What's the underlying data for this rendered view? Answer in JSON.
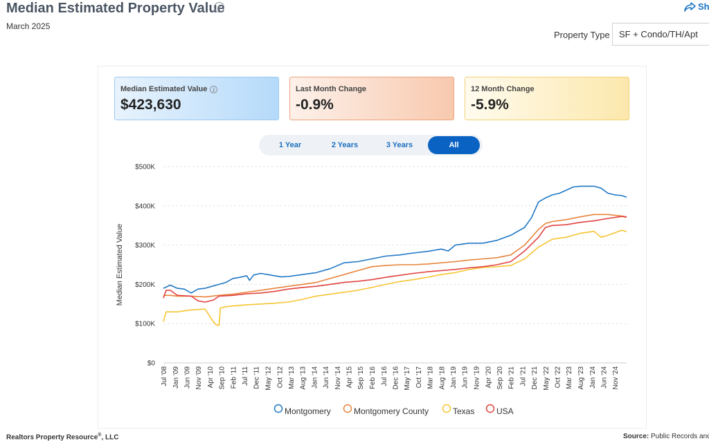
{
  "header": {
    "title": "Median Estimated Property Value",
    "subtitle": "March 2025",
    "share_label": "Sh",
    "property_type_label": "Property Type",
    "property_type_value": "SF + Condo/TH/Apt"
  },
  "cards": {
    "median": {
      "label": "Median Estimated Value",
      "value": "$423,630"
    },
    "last_month": {
      "label": "Last Month Change",
      "value": "-0.9%"
    },
    "twelve_month": {
      "label": "12 Month Change",
      "value": "-5.9%"
    }
  },
  "range_tabs": [
    {
      "label": "1 Year",
      "active": false
    },
    {
      "label": "2 Years",
      "active": false
    },
    {
      "label": "3 Years",
      "active": false
    },
    {
      "label": "All",
      "active": true
    }
  ],
  "footer": {
    "left": "Realtors Property Resource",
    "left_mark": "®",
    "left_suffix": ", LLC",
    "right_bold": "Source:",
    "right_text": " Public Records and"
  },
  "colors": {
    "Montgomery": "#1f77c4",
    "Montgomery County": "#e8833a",
    "Texas": "#f6c431",
    "USA": "#e0413f"
  },
  "chart_data": {
    "type": "line",
    "ylabel": "Median Estimated Value",
    "ylim": [
      0,
      500000
    ],
    "yticks": [
      0,
      100000,
      200000,
      300000,
      400000,
      500000
    ],
    "ytick_labels": [
      "$0",
      "$100K",
      "$200K",
      "$300K",
      "$400K",
      "$500K"
    ],
    "x_start": 2008.5,
    "x_end": 2025.17,
    "xtick_labels": [
      "Jul '08",
      "Jan '09",
      "Jun '09",
      "Nov '09",
      "Apr '10",
      "Sep '10",
      "Feb '11",
      "Jul '11",
      "Dec '11",
      "May '12",
      "Oct '12",
      "Mar '13",
      "Aug '13",
      "Jan '14",
      "Jun '14",
      "Nov '14",
      "Apr '15",
      "Sep '15",
      "Feb '16",
      "Jul '16",
      "Dec '16",
      "May '17",
      "Oct '17",
      "Mar '18",
      "Aug '18",
      "Jan '19",
      "Jun '19",
      "Nov '19",
      "Apr '20",
      "Sep '20",
      "Feb '21",
      "Jul '21",
      "Dec '21",
      "May '22",
      "Oct '22",
      "Mar '23",
      "Aug '23",
      "Jan '24",
      "Jun '24",
      "Nov '24"
    ],
    "xtick_values": [
      2008.5,
      2008.92,
      2009.33,
      2009.75,
      2010.17,
      2010.58,
      2011.0,
      2011.42,
      2011.83,
      2012.25,
      2012.67,
      2013.08,
      2013.5,
      2013.92,
      2014.33,
      2014.75,
      2015.17,
      2015.58,
      2016.0,
      2016.42,
      2016.83,
      2017.25,
      2017.67,
      2018.08,
      2018.5,
      2018.92,
      2019.33,
      2019.75,
      2020.17,
      2020.58,
      2021.0,
      2021.42,
      2021.83,
      2022.25,
      2022.67,
      2023.08,
      2023.5,
      2023.92,
      2024.33,
      2024.75
    ],
    "series": [
      {
        "name": "Montgomery",
        "x": [
          2008.5,
          2008.75,
          2009.0,
          2009.25,
          2009.5,
          2009.6,
          2009.75,
          2010.0,
          2010.25,
          2010.5,
          2010.75,
          2011.0,
          2011.25,
          2011.5,
          2011.6,
          2011.75,
          2012.0,
          2012.25,
          2012.5,
          2012.75,
          2013.0,
          2013.5,
          2014.0,
          2014.5,
          2015.0,
          2015.5,
          2016.0,
          2016.5,
          2017.0,
          2017.5,
          2018.0,
          2018.5,
          2018.75,
          2019.0,
          2019.5,
          2020.0,
          2020.5,
          2021.0,
          2021.5,
          2021.75,
          2022.0,
          2022.25,
          2022.5,
          2022.75,
          2023.0,
          2023.25,
          2023.5,
          2023.75,
          2024.0,
          2024.25,
          2024.5,
          2024.75,
          2025.0,
          2025.17
        ],
        "values": [
          190000,
          198000,
          190000,
          188000,
          178000,
          182000,
          188000,
          190000,
          195000,
          200000,
          205000,
          215000,
          218000,
          222000,
          210000,
          224000,
          228000,
          225000,
          222000,
          219000,
          220000,
          225000,
          230000,
          240000,
          255000,
          258000,
          265000,
          272000,
          275000,
          280000,
          284000,
          290000,
          285000,
          300000,
          305000,
          305000,
          312000,
          325000,
          345000,
          370000,
          410000,
          420000,
          428000,
          432000,
          440000,
          448000,
          450000,
          450000,
          450000,
          445000,
          432000,
          428000,
          426000,
          422000
        ]
      },
      {
        "name": "Montgomery County",
        "x": [
          2008.5,
          2008.75,
          2009.0,
          2009.5,
          2010.0,
          2010.5,
          2011.0,
          2011.5,
          2012.0,
          2012.5,
          2013.0,
          2013.5,
          2014.0,
          2014.5,
          2015.0,
          2015.5,
          2016.0,
          2016.5,
          2017.0,
          2017.5,
          2018.0,
          2018.5,
          2019.0,
          2019.5,
          2020.0,
          2020.5,
          2021.0,
          2021.5,
          2022.0,
          2022.25,
          2022.5,
          2023.0,
          2023.5,
          2024.0,
          2024.5,
          2025.0,
          2025.17
        ],
        "values": [
          172000,
          172000,
          170000,
          170000,
          168000,
          172000,
          175000,
          180000,
          185000,
          190000,
          195000,
          200000,
          205000,
          215000,
          225000,
          235000,
          245000,
          248000,
          250000,
          250000,
          252000,
          255000,
          258000,
          262000,
          265000,
          268000,
          275000,
          300000,
          340000,
          355000,
          360000,
          365000,
          372000,
          378000,
          378000,
          374000,
          372000
        ]
      },
      {
        "name": "Texas",
        "x": [
          2008.5,
          2008.6,
          2008.75,
          2009.0,
          2009.5,
          2010.0,
          2010.3,
          2010.4,
          2010.5,
          2010.55,
          2010.75,
          2011.0,
          2011.5,
          2012.0,
          2012.5,
          2013.0,
          2013.5,
          2014.0,
          2014.5,
          2015.0,
          2015.5,
          2016.0,
          2016.5,
          2017.0,
          2017.5,
          2018.0,
          2018.5,
          2019.0,
          2019.5,
          2020.0,
          2020.5,
          2021.0,
          2021.5,
          2022.0,
          2022.5,
          2023.0,
          2023.5,
          2024.0,
          2024.25,
          2024.5,
          2025.0,
          2025.17
        ],
        "values": [
          105000,
          130000,
          130000,
          130000,
          135000,
          137000,
          105000,
          97000,
          95000,
          140000,
          143000,
          145000,
          148000,
          150000,
          152000,
          155000,
          162000,
          170000,
          175000,
          180000,
          185000,
          192000,
          200000,
          207000,
          212000,
          218000,
          225000,
          230000,
          238000,
          243000,
          245000,
          248000,
          265000,
          295000,
          315000,
          320000,
          330000,
          335000,
          320000,
          325000,
          338000,
          334000
        ]
      },
      {
        "name": "USA",
        "x": [
          2008.5,
          2008.6,
          2008.75,
          2009.0,
          2009.5,
          2009.75,
          2010.0,
          2010.3,
          2010.5,
          2011.0,
          2011.5,
          2012.0,
          2012.5,
          2013.0,
          2013.5,
          2014.0,
          2014.5,
          2015.0,
          2015.5,
          2016.0,
          2016.5,
          2017.0,
          2017.5,
          2018.0,
          2018.5,
          2019.0,
          2019.5,
          2020.0,
          2020.5,
          2021.0,
          2021.5,
          2022.0,
          2022.25,
          2022.5,
          2023.0,
          2023.5,
          2024.0,
          2024.5,
          2025.0,
          2025.17
        ],
        "values": [
          165000,
          185000,
          185000,
          172000,
          170000,
          158000,
          155000,
          160000,
          170000,
          172000,
          176000,
          178000,
          182000,
          188000,
          192000,
          195000,
          200000,
          205000,
          208000,
          212000,
          218000,
          223000,
          228000,
          232000,
          235000,
          238000,
          242000,
          245000,
          250000,
          258000,
          285000,
          320000,
          345000,
          350000,
          352000,
          358000,
          362000,
          368000,
          373000,
          371000
        ]
      }
    ]
  }
}
